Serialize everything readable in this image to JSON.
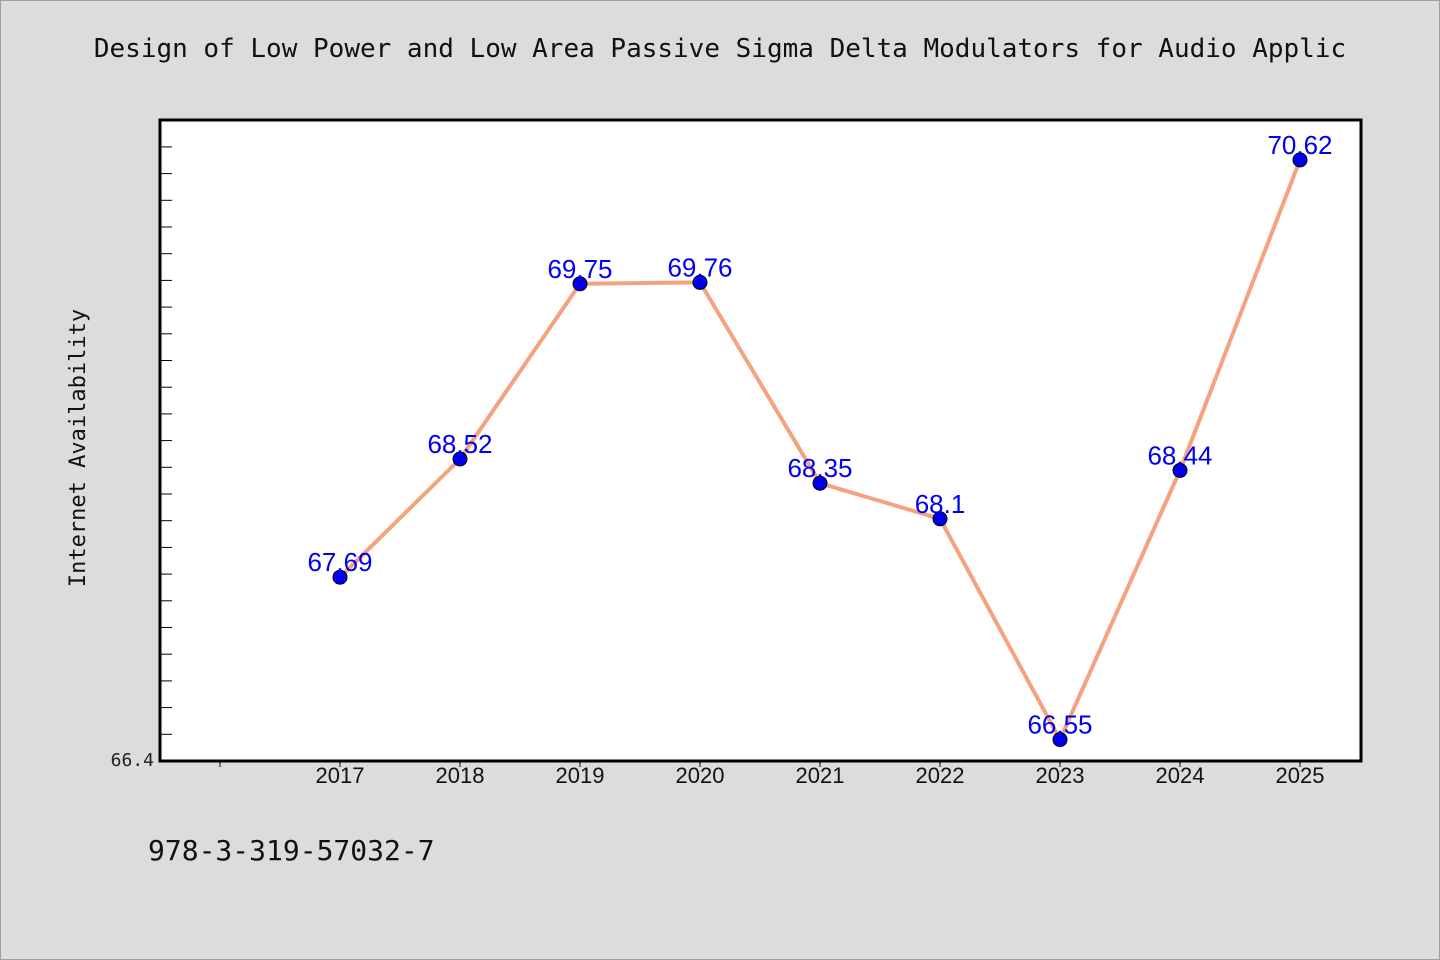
{
  "chart_data": {
    "type": "line",
    "title": "Design of Low Power and Low Area Passive Sigma Delta Modulators for Audio Applic",
    "ylabel": "Internet Availability",
    "xlabel": "",
    "y_min_label": "66.4",
    "ylim": [
      66.4,
      70.9
    ],
    "categories": [
      "2017",
      "2018",
      "2019",
      "2020",
      "2021",
      "2022",
      "2023",
      "2024",
      "2025"
    ],
    "series": [
      {
        "values": [
          67.69,
          68.52,
          69.75,
          69.76,
          68.35,
          68.1,
          66.55,
          68.44,
          70.62
        ],
        "labels": [
          "67.69",
          "68.52",
          "69.75",
          "69.76",
          "68.35",
          "68.1",
          "66.55",
          "68.44",
          "70.62"
        ],
        "line_color": "#f4a27f",
        "marker_color": "#0000ee",
        "label_color": "#0000ee"
      }
    ],
    "grid": false,
    "legend": "none"
  },
  "footer": {
    "isbn": "978-3-319-57032-7"
  }
}
